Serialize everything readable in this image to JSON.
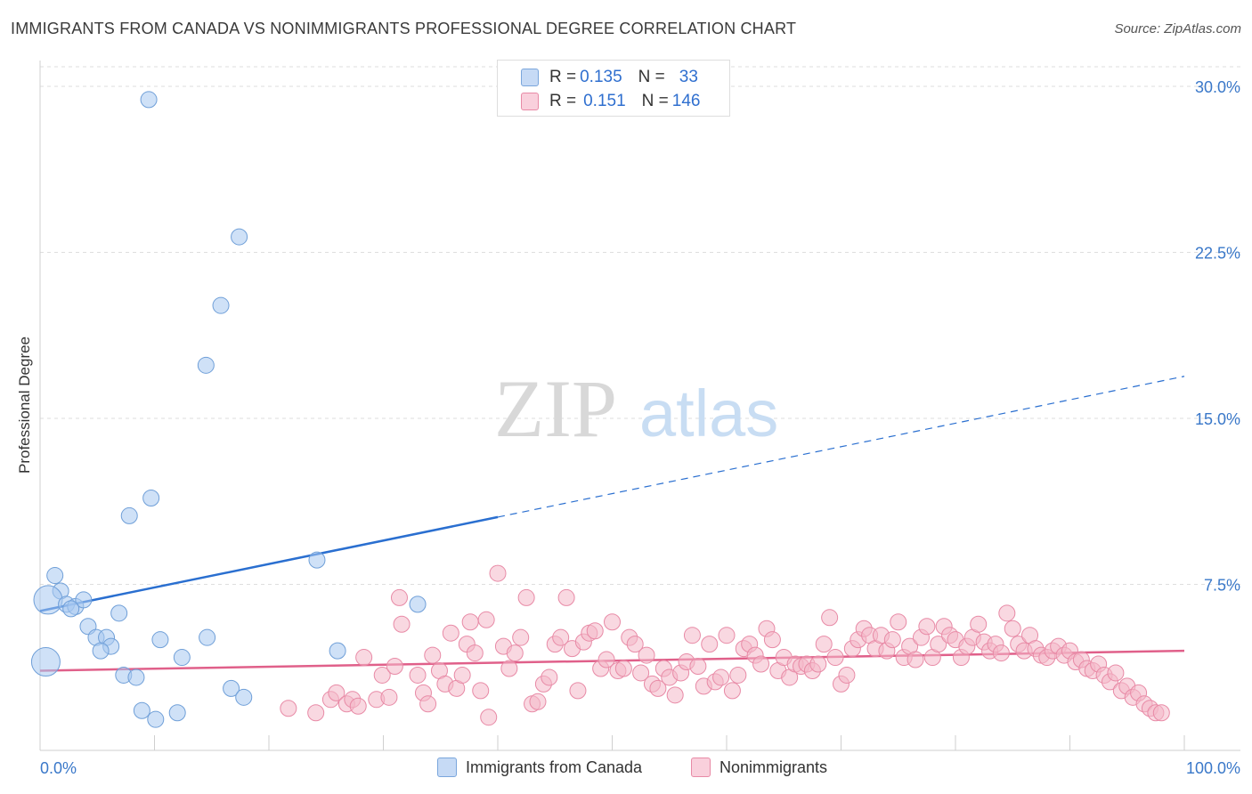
{
  "title": "IMMIGRANTS FROM CANADA VS NONIMMIGRANTS PROFESSIONAL DEGREE CORRELATION CHART",
  "source": "Source: ZipAtlas.com",
  "watermark": {
    "zip": "ZIP",
    "atlas": "atlas"
  },
  "legend_top": [
    {
      "r_label": "R = ",
      "r_value": "0.135",
      "n_label": "N = ",
      "n_value": "33",
      "color": "#a8c8f0"
    },
    {
      "r_label": "R = ",
      "r_value": "0.151",
      "n_label": "N = ",
      "n_value": "146",
      "color": "#f4b8c8"
    }
  ],
  "chart_data": {
    "type": "scatter",
    "title": "IMMIGRANTS FROM CANADA VS NONIMMIGRANTS PROFESSIONAL DEGREE CORRELATION CHART",
    "xlabel": "",
    "ylabel": "Professional Degree",
    "xlim": [
      0,
      100
    ],
    "ylim": [
      0,
      30.5
    ],
    "x_tick_labels": [
      "0.0%",
      "100.0%"
    ],
    "y_ticks": [
      7.5,
      15.0,
      22.5,
      30.0
    ],
    "y_tick_labels": [
      "7.5%",
      "15.0%",
      "22.5%",
      "30.0%"
    ],
    "grid": true,
    "legend_position": "bottom",
    "series": [
      {
        "name": "Immigrants from Canada",
        "color": "#a8c8f0",
        "stroke": "#6f9fd8",
        "line_color": "#2a6fd0",
        "trend": {
          "x0": 0,
          "y0": 6.3,
          "x1": 100,
          "y1": 16.9,
          "solid_until": 40
        },
        "points": [
          {
            "x": 9.5,
            "y": 29.4
          },
          {
            "x": 17.4,
            "y": 23.2
          },
          {
            "x": 15.8,
            "y": 20.1
          },
          {
            "x": 14.5,
            "y": 17.4
          },
          {
            "x": 9.7,
            "y": 11.4
          },
          {
            "x": 7.8,
            "y": 10.6
          },
          {
            "x": 24.2,
            "y": 8.6
          },
          {
            "x": 1.3,
            "y": 7.9
          },
          {
            "x": 1.8,
            "y": 7.2
          },
          {
            "x": 0.7,
            "y": 6.8
          },
          {
            "x": 2.3,
            "y": 6.6
          },
          {
            "x": 3.1,
            "y": 6.5
          },
          {
            "x": 3.8,
            "y": 6.8
          },
          {
            "x": 2.7,
            "y": 6.4
          },
          {
            "x": 6.9,
            "y": 6.2
          },
          {
            "x": 4.2,
            "y": 5.6
          },
          {
            "x": 4.9,
            "y": 5.1
          },
          {
            "x": 5.8,
            "y": 5.1
          },
          {
            "x": 10.5,
            "y": 5.0
          },
          {
            "x": 14.6,
            "y": 5.1
          },
          {
            "x": 6.2,
            "y": 4.7
          },
          {
            "x": 5.3,
            "y": 4.5
          },
          {
            "x": 26.0,
            "y": 4.5
          },
          {
            "x": 12.4,
            "y": 4.2
          },
          {
            "x": 0.5,
            "y": 4.0
          },
          {
            "x": 7.3,
            "y": 3.4
          },
          {
            "x": 8.4,
            "y": 3.3
          },
          {
            "x": 16.7,
            "y": 2.8
          },
          {
            "x": 17.8,
            "y": 2.4
          },
          {
            "x": 8.9,
            "y": 1.8
          },
          {
            "x": 10.1,
            "y": 1.4
          },
          {
            "x": 12.0,
            "y": 1.7
          },
          {
            "x": 33.0,
            "y": 6.6
          }
        ]
      },
      {
        "name": "Nonimmigrants",
        "color": "#f4b8c8",
        "stroke": "#e88aa6",
        "line_color": "#e0608a",
        "trend": {
          "x0": 0,
          "y0": 3.6,
          "x1": 100,
          "y1": 4.5
        },
        "points": [
          {
            "x": 21.7,
            "y": 1.9
          },
          {
            "x": 24.1,
            "y": 1.7
          },
          {
            "x": 25.4,
            "y": 2.3
          },
          {
            "x": 25.9,
            "y": 2.6
          },
          {
            "x": 26.8,
            "y": 2.1
          },
          {
            "x": 27.3,
            "y": 2.3
          },
          {
            "x": 27.8,
            "y": 2.0
          },
          {
            "x": 28.3,
            "y": 4.2
          },
          {
            "x": 29.9,
            "y": 3.4
          },
          {
            "x": 29.4,
            "y": 2.3
          },
          {
            "x": 30.5,
            "y": 2.4
          },
          {
            "x": 31.0,
            "y": 3.8
          },
          {
            "x": 31.4,
            "y": 6.9
          },
          {
            "x": 31.6,
            "y": 5.7
          },
          {
            "x": 33.0,
            "y": 3.4
          },
          {
            "x": 33.5,
            "y": 2.6
          },
          {
            "x": 33.9,
            "y": 2.1
          },
          {
            "x": 34.3,
            "y": 4.3
          },
          {
            "x": 34.9,
            "y": 3.6
          },
          {
            "x": 35.4,
            "y": 3.0
          },
          {
            "x": 35.9,
            "y": 5.3
          },
          {
            "x": 36.4,
            "y": 2.8
          },
          {
            "x": 36.9,
            "y": 3.4
          },
          {
            "x": 37.3,
            "y": 4.8
          },
          {
            "x": 37.6,
            "y": 5.8
          },
          {
            "x": 38.0,
            "y": 4.4
          },
          {
            "x": 38.5,
            "y": 2.7
          },
          {
            "x": 39.0,
            "y": 5.9
          },
          {
            "x": 39.2,
            "y": 1.5
          },
          {
            "x": 40.0,
            "y": 8.0
          },
          {
            "x": 40.5,
            "y": 4.7
          },
          {
            "x": 41.0,
            "y": 3.7
          },
          {
            "x": 41.5,
            "y": 4.4
          },
          {
            "x": 42.0,
            "y": 5.1
          },
          {
            "x": 42.5,
            "y": 6.9
          },
          {
            "x": 43.0,
            "y": 2.1
          },
          {
            "x": 43.5,
            "y": 2.2
          },
          {
            "x": 44.0,
            "y": 3.0
          },
          {
            "x": 44.5,
            "y": 3.3
          },
          {
            "x": 45.0,
            "y": 4.8
          },
          {
            "x": 45.5,
            "y": 5.1
          },
          {
            "x": 46.0,
            "y": 6.9
          },
          {
            "x": 46.5,
            "y": 4.6
          },
          {
            "x": 47.0,
            "y": 2.7
          },
          {
            "x": 47.5,
            "y": 4.9
          },
          {
            "x": 48.0,
            "y": 5.3
          },
          {
            "x": 48.5,
            "y": 5.4
          },
          {
            "x": 49.0,
            "y": 3.7
          },
          {
            "x": 49.5,
            "y": 4.1
          },
          {
            "x": 50.0,
            "y": 5.8
          },
          {
            "x": 50.5,
            "y": 3.6
          },
          {
            "x": 51.0,
            "y": 3.7
          },
          {
            "x": 51.5,
            "y": 5.1
          },
          {
            "x": 52.0,
            "y": 4.8
          },
          {
            "x": 52.5,
            "y": 3.5
          },
          {
            "x": 53.0,
            "y": 4.3
          },
          {
            "x": 53.5,
            "y": 3.0
          },
          {
            "x": 54.0,
            "y": 2.8
          },
          {
            "x": 54.5,
            "y": 3.7
          },
          {
            "x": 55.0,
            "y": 3.3
          },
          {
            "x": 55.5,
            "y": 2.5
          },
          {
            "x": 56.0,
            "y": 3.5
          },
          {
            "x": 56.5,
            "y": 4.0
          },
          {
            "x": 57.0,
            "y": 5.2
          },
          {
            "x": 57.5,
            "y": 3.8
          },
          {
            "x": 58.0,
            "y": 2.9
          },
          {
            "x": 58.5,
            "y": 4.8
          },
          {
            "x": 59.0,
            "y": 3.1
          },
          {
            "x": 59.5,
            "y": 3.3
          },
          {
            "x": 60.0,
            "y": 5.2
          },
          {
            "x": 60.5,
            "y": 2.7
          },
          {
            "x": 61.0,
            "y": 3.4
          },
          {
            "x": 61.5,
            "y": 4.6
          },
          {
            "x": 62.0,
            "y": 4.8
          },
          {
            "x": 62.5,
            "y": 4.3
          },
          {
            "x": 63.0,
            "y": 3.9
          },
          {
            "x": 63.5,
            "y": 5.5
          },
          {
            "x": 64.0,
            "y": 5.0
          },
          {
            "x": 64.5,
            "y": 3.6
          },
          {
            "x": 65.0,
            "y": 4.2
          },
          {
            "x": 65.5,
            "y": 3.3
          },
          {
            "x": 66.0,
            "y": 3.9
          },
          {
            "x": 66.5,
            "y": 3.8
          },
          {
            "x": 67.0,
            "y": 3.9
          },
          {
            "x": 67.5,
            "y": 3.6
          },
          {
            "x": 68.0,
            "y": 3.9
          },
          {
            "x": 68.5,
            "y": 4.8
          },
          {
            "x": 69.0,
            "y": 6.0
          },
          {
            "x": 69.5,
            "y": 4.2
          },
          {
            "x": 70.0,
            "y": 3.0
          },
          {
            "x": 70.5,
            "y": 3.4
          },
          {
            "x": 71.0,
            "y": 4.6
          },
          {
            "x": 71.5,
            "y": 5.0
          },
          {
            "x": 72.0,
            "y": 5.5
          },
          {
            "x": 72.5,
            "y": 5.2
          },
          {
            "x": 73.0,
            "y": 4.6
          },
          {
            "x": 73.5,
            "y": 5.2
          },
          {
            "x": 74.0,
            "y": 4.5
          },
          {
            "x": 74.5,
            "y": 5.0
          },
          {
            "x": 75.0,
            "y": 5.8
          },
          {
            "x": 75.5,
            "y": 4.2
          },
          {
            "x": 76.0,
            "y": 4.7
          },
          {
            "x": 76.5,
            "y": 4.1
          },
          {
            "x": 77.0,
            "y": 5.1
          },
          {
            "x": 77.5,
            "y": 5.6
          },
          {
            "x": 78.0,
            "y": 4.2
          },
          {
            "x": 78.5,
            "y": 4.8
          },
          {
            "x": 79.0,
            "y": 5.6
          },
          {
            "x": 79.5,
            "y": 5.2
          },
          {
            "x": 80.0,
            "y": 5.0
          },
          {
            "x": 80.5,
            "y": 4.2
          },
          {
            "x": 81.0,
            "y": 4.7
          },
          {
            "x": 81.5,
            "y": 5.1
          },
          {
            "x": 82.0,
            "y": 5.7
          },
          {
            "x": 82.5,
            "y": 4.9
          },
          {
            "x": 83.0,
            "y": 4.5
          },
          {
            "x": 83.5,
            "y": 4.8
          },
          {
            "x": 84.0,
            "y": 4.4
          },
          {
            "x": 84.5,
            "y": 6.2
          },
          {
            "x": 85.0,
            "y": 5.5
          },
          {
            "x": 85.5,
            "y": 4.8
          },
          {
            "x": 86.0,
            "y": 4.5
          },
          {
            "x": 86.5,
            "y": 5.2
          },
          {
            "x": 87.0,
            "y": 4.6
          },
          {
            "x": 87.5,
            "y": 4.3
          },
          {
            "x": 88.0,
            "y": 4.2
          },
          {
            "x": 88.5,
            "y": 4.5
          },
          {
            "x": 89.0,
            "y": 4.7
          },
          {
            "x": 89.5,
            "y": 4.3
          },
          {
            "x": 90.0,
            "y": 4.5
          },
          {
            "x": 90.5,
            "y": 4.0
          },
          {
            "x": 91.0,
            "y": 4.1
          },
          {
            "x": 91.5,
            "y": 3.7
          },
          {
            "x": 92.0,
            "y": 3.6
          },
          {
            "x": 92.5,
            "y": 3.9
          },
          {
            "x": 93.0,
            "y": 3.4
          },
          {
            "x": 93.5,
            "y": 3.1
          },
          {
            "x": 94.0,
            "y": 3.5
          },
          {
            "x": 94.5,
            "y": 2.7
          },
          {
            "x": 95.0,
            "y": 2.9
          },
          {
            "x": 95.5,
            "y": 2.4
          },
          {
            "x": 96.0,
            "y": 2.6
          },
          {
            "x": 96.5,
            "y": 2.1
          },
          {
            "x": 97.0,
            "y": 1.9
          },
          {
            "x": 97.5,
            "y": 1.7
          },
          {
            "x": 98.0,
            "y": 1.7
          }
        ]
      }
    ]
  }
}
